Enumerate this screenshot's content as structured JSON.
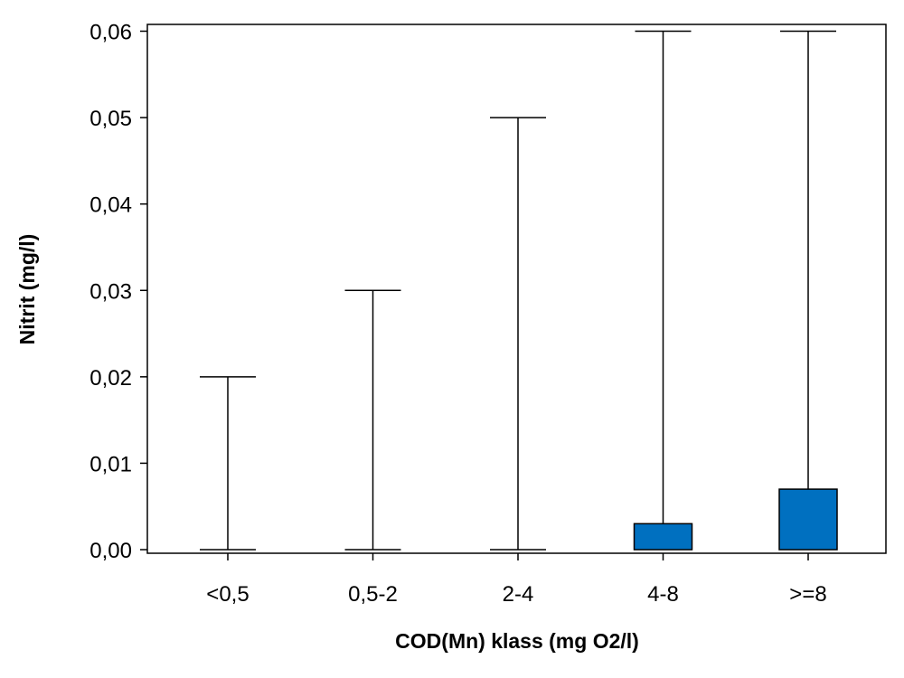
{
  "chart_data": {
    "type": "box",
    "title": "",
    "xlabel": "COD(Mn) klass (mg O2/l)",
    "ylabel": "Nitrit (mg/l)",
    "ylim": [
      0,
      0.06
    ],
    "yticks": [
      0.0,
      0.01,
      0.02,
      0.03,
      0.04,
      0.05,
      0.06
    ],
    "ytick_labels": [
      "0,00",
      "0,01",
      "0,02",
      "0,03",
      "0,04",
      "0,05",
      "0,06"
    ],
    "categories": [
      "<0,5",
      "0,5-2",
      "2-4",
      "4-8",
      ">=8"
    ],
    "box_color": "#0070C0",
    "boxes": [
      {
        "category": "<0,5",
        "min": 0,
        "q1": 0,
        "q3": 0,
        "max": 0.02
      },
      {
        "category": "0,5-2",
        "min": 0,
        "q1": 0,
        "q3": 0,
        "max": 0.03
      },
      {
        "category": "2-4",
        "min": 0,
        "q1": 0,
        "q3": 0,
        "max": 0.05
      },
      {
        "category": "4-8",
        "min": 0,
        "q1": 0,
        "q3": 0.003,
        "max": 0.06
      },
      {
        "category": ">=8",
        "min": 0,
        "q1": 0,
        "q3": 0.007,
        "max": 0.06
      }
    ]
  }
}
